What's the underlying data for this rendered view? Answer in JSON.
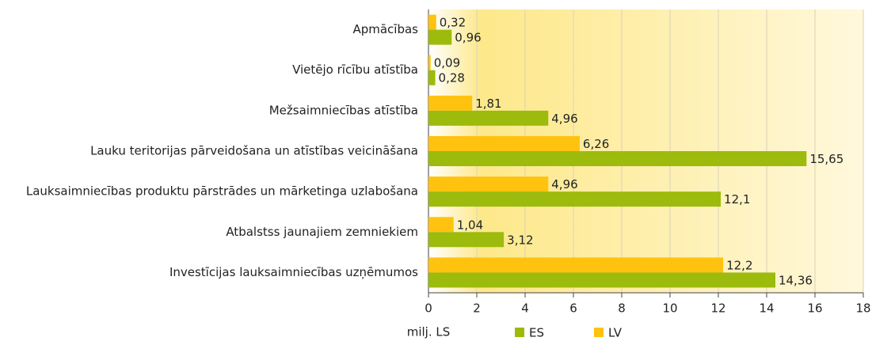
{
  "chart_data": {
    "type": "barh",
    "categories": [
      "Apmācības",
      "Vietējo rīcību atīstība",
      "Mežsaimniecības atīstība",
      "Lauku teritorijas pārveidošana un atīstības veicināšana",
      "Lauksaimniecības produktu pārstrādes un mārketinga uzlabošana",
      "Atbalstss jaunajiem zemniekiem",
      "Investīcijas lauksaimniecības uzņēmumos"
    ],
    "series": [
      {
        "name": "ES",
        "color": "#9cbb0c",
        "values": [
          0.96,
          0.28,
          4.96,
          15.65,
          12.1,
          3.12,
          14.36
        ],
        "value_labels": [
          "0,96",
          "0,28",
          "4,96",
          "15,65",
          "12,1",
          "3,12",
          "14,36"
        ]
      },
      {
        "name": "LV",
        "color": "#ffc20e",
        "values": [
          0.32,
          0.09,
          1.81,
          6.26,
          4.96,
          1.04,
          12.2
        ],
        "value_labels": [
          "0,32",
          "0,09",
          "1,81",
          "6,26",
          "4,96",
          "1,04",
          "12,2"
        ]
      }
    ],
    "xlabel": "milj. LS",
    "xlim": [
      0,
      18
    ],
    "xticks": [
      0,
      2,
      4,
      6,
      8,
      10,
      12,
      14,
      16,
      18
    ],
    "grid": true
  }
}
